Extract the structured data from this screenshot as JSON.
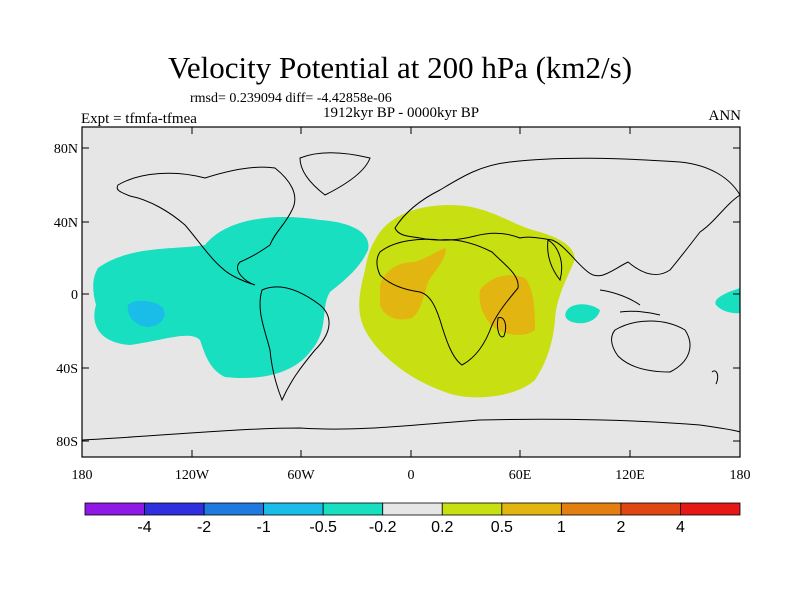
{
  "title": "Velocity Potential at 200 hPa (km2/s)",
  "stats_text": "rmsd= 0.239094 diff= -4.42858e-06",
  "experiment_text": "Expt = tfmfa-tfmea",
  "period_text": "1912kyr BP - 0000kyr BP",
  "season_text": "ANN",
  "latitude_labels": [
    "80N",
    "40N",
    "0",
    "40S",
    "80S"
  ],
  "longitude_labels": [
    "180",
    "120W",
    "60W",
    "0",
    "60E",
    "120E",
    "180"
  ],
  "colorbar": {
    "colors": [
      "#8f18e6",
      "#2f2fe0",
      "#1f7ae0",
      "#19bde8",
      "#18dfc0",
      "#e6e6e6",
      "#c8e011",
      "#e3b511",
      "#e37f11",
      "#e04512",
      "#e61717"
    ],
    "labels": [
      "-4",
      "-2",
      "-1",
      "-0.5",
      "-0.2",
      "0.2",
      "0.5",
      "1",
      "2",
      "4"
    ]
  },
  "map_colors": {
    "background": "#e6e6e6",
    "neg_weak": "#18dfc0",
    "neg_mid": "#19bde8",
    "pos_weak": "#c8e011",
    "pos_mid": "#e3b511",
    "coast": "#000000"
  }
}
